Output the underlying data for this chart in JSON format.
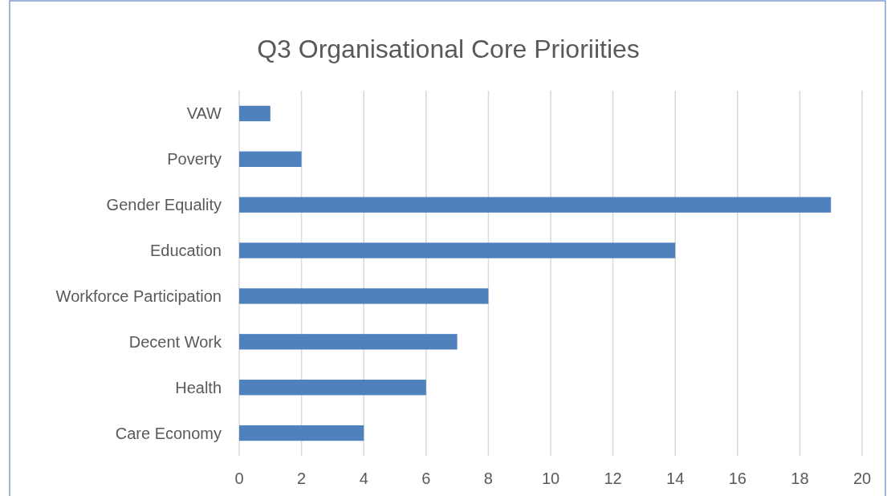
{
  "chart_data": {
    "type": "bar",
    "orientation": "horizontal",
    "title": "Q3 Organisational Core Prioriities",
    "categories": [
      "VAW",
      "Poverty",
      "Gender Equality",
      "Education",
      "Workforce Participation",
      "Decent Work",
      "Health",
      "Care Economy"
    ],
    "values": [
      1,
      2,
      19,
      14,
      8,
      7,
      6,
      4
    ],
    "color": "#4f81bd",
    "xlim": [
      0,
      20
    ],
    "xticks": [
      0,
      2,
      4,
      6,
      8,
      10,
      12,
      14,
      16,
      18,
      20
    ],
    "grid": "x"
  }
}
